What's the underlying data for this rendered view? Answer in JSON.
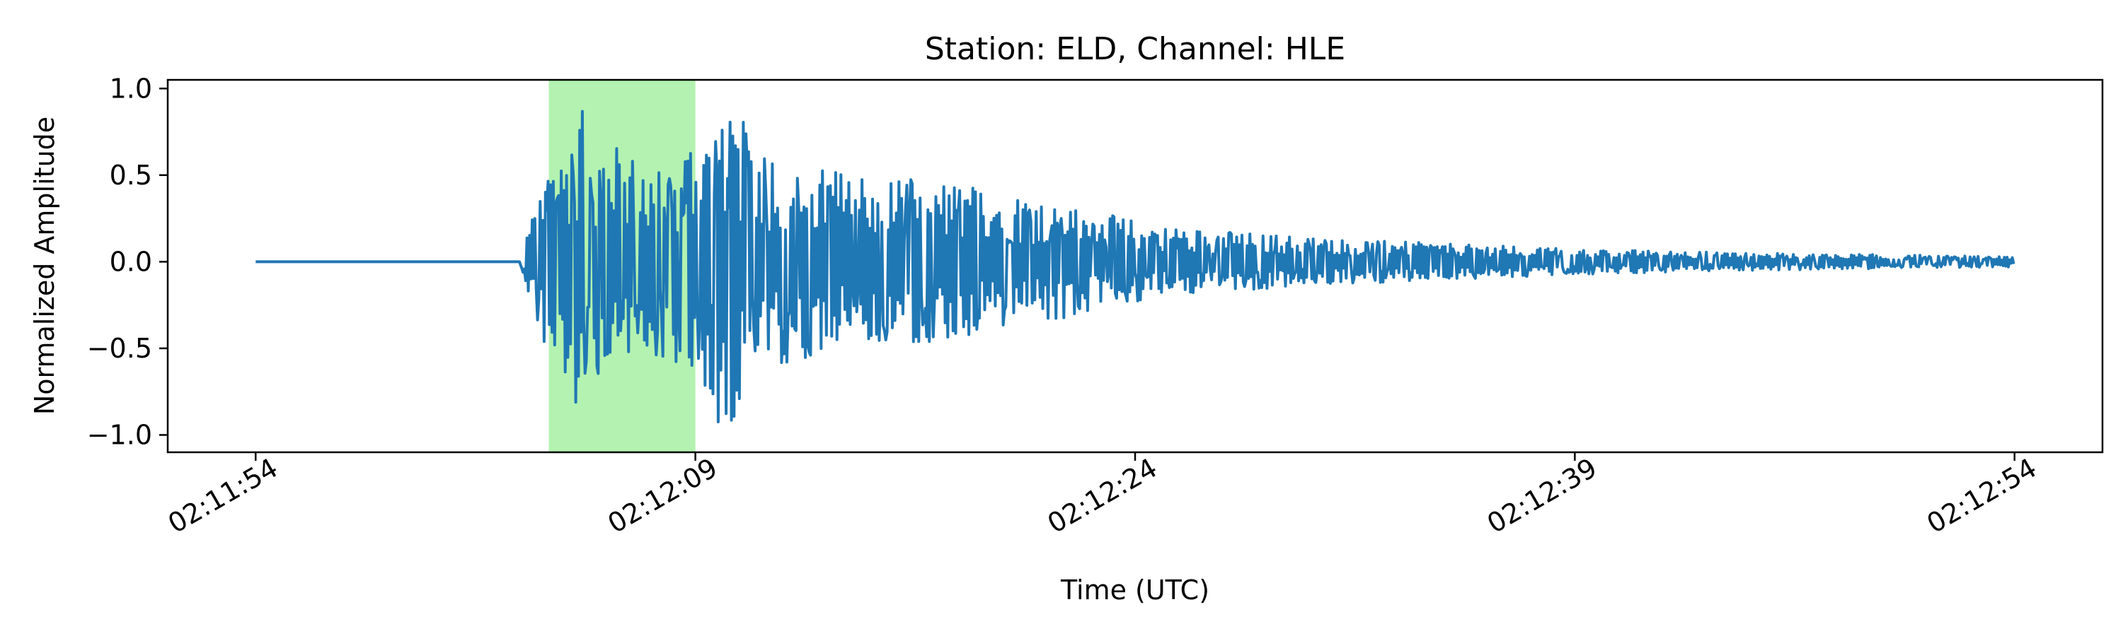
{
  "chart_data": {
    "type": "line",
    "title": "Station: ELD, Channel: HLE",
    "xlabel": "Time (UTC)",
    "ylabel": "Normalized Amplitude",
    "time_ticks": [
      "02:11:54",
      "02:12:09",
      "02:12:24",
      "02:12:39",
      "02:12:54"
    ],
    "y_ticks": [
      "1.0",
      "0.5",
      "0.0",
      "−0.5",
      "−1.0"
    ],
    "xlim": [
      "02:11:51",
      "02:12:57"
    ],
    "ylim": [
      -1.1,
      1.05
    ],
    "grid": false,
    "legend": "none",
    "highlight_window": {
      "start": "02:12:04",
      "end": "02:12:09",
      "color": "#b3f2b0"
    },
    "series": [
      {
        "color": "#1f77b4",
        "envelope": {
          "time": [
            "02:11:54",
            "02:12:03",
            "02:12:03.3",
            "02:12:04",
            "02:12:05",
            "02:12:06",
            "02:12:07",
            "02:12:08",
            "02:12:09",
            "02:12:10",
            "02:12:11",
            "02:12:13",
            "02:12:15",
            "02:12:18",
            "02:12:21",
            "02:12:25",
            "02:12:30",
            "02:12:35",
            "02:12:40",
            "02:12:45",
            "02:12:50",
            "02:12:54"
          ],
          "amplitude": [
            0.0,
            0.0,
            0.2,
            0.55,
            0.9,
            0.7,
            0.6,
            0.55,
            0.75,
            1.0,
            0.7,
            0.55,
            0.5,
            0.45,
            0.35,
            0.2,
            0.14,
            0.1,
            0.07,
            0.05,
            0.04,
            0.03
          ]
        }
      }
    ]
  }
}
